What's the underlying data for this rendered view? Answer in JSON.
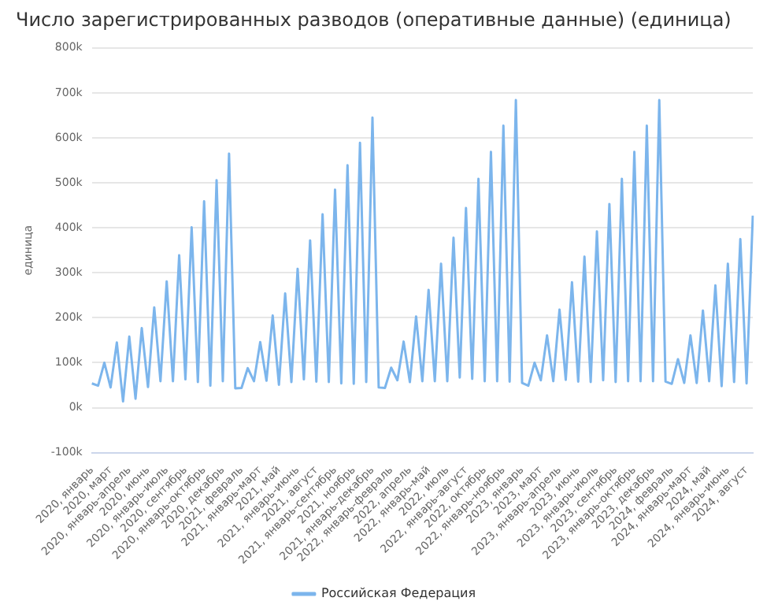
{
  "chart_data": {
    "type": "line",
    "title": "Число зарегистрированных разводов (оперативные данные) (единица)",
    "ylabel": "единица",
    "categories": [
      "2020, январь",
      null,
      null,
      "2020, март",
      null,
      null,
      "2020, январь-апрель",
      null,
      null,
      "2020, июнь",
      null,
      null,
      "2020, январь-июль",
      null,
      null,
      "2020, сентябрь",
      null,
      null,
      "2020, январь-октябрь",
      null,
      null,
      "2020, декабрь",
      null,
      null,
      "2021, февраль",
      null,
      null,
      "2021, январь-март",
      null,
      null,
      "2021, май",
      null,
      null,
      "2021, январь-июнь",
      null,
      null,
      "2021, август",
      null,
      null,
      "2021, январь-сентябрь",
      null,
      null,
      "2021, ноябрь",
      null,
      null,
      "2021, январь-декабрь",
      null,
      null,
      "2022, январь-февраль",
      null,
      null,
      "2022, апрель",
      null,
      null,
      "2022, январь-май",
      null,
      null,
      "2022, июль",
      null,
      null,
      "2022, январь-август",
      null,
      null,
      "2022, октябрь",
      null,
      null,
      "2022, январь-ноябрь",
      null,
      null,
      "2023, январь",
      null,
      null,
      "2023, март",
      null,
      null,
      "2023, январь-апрель",
      null,
      null,
      "2023, июнь",
      null,
      null,
      "2023, январь-июль",
      null,
      null,
      "2023, сентябрь",
      null,
      null,
      "2023, январь-октябрь",
      null,
      null,
      "2023, декабрь",
      null,
      null,
      "2024, февраль",
      null,
      null,
      "2024, январь-март",
      null,
      null,
      "2024, май",
      null,
      null,
      "2024, январь-июнь",
      null,
      null,
      "2024, август",
      null
    ],
    "series": [
      {
        "name": "Российская Федерация",
        "color": "#7cb5ec",
        "values": [
          54000,
          49000,
          100000,
          45000,
          145000,
          14000,
          158000,
          20000,
          177000,
          46000,
          223000,
          59000,
          281000,
          59000,
          339000,
          63000,
          401000,
          57000,
          459000,
          49000,
          506000,
          59000,
          565000,
          43000,
          44000,
          88000,
          59000,
          146000,
          60000,
          205000,
          51000,
          254000,
          57000,
          309000,
          63000,
          372000,
          58000,
          430000,
          57000,
          485000,
          54000,
          539000,
          53000,
          589000,
          57000,
          645000,
          45000,
          44000,
          89000,
          61000,
          147000,
          57000,
          203000,
          59000,
          262000,
          59000,
          320000,
          59000,
          378000,
          67000,
          444000,
          64000,
          509000,
          59000,
          569000,
          59000,
          627000,
          58000,
          684000,
          55000,
          49000,
          100000,
          61000,
          161000,
          59000,
          218000,
          62000,
          279000,
          58000,
          336000,
          57000,
          392000,
          61000,
          453000,
          57000,
          509000,
          59000,
          569000,
          59000,
          627000,
          59000,
          684000,
          58000,
          53000,
          108000,
          55000,
          161000,
          55000,
          216000,
          59000,
          272000,
          48000,
          320000,
          57000,
          375000,
          54000,
          427000
        ]
      }
    ],
    "ylim": [
      -100000,
      800000
    ],
    "yticks": [
      {
        "value": -100000,
        "label": "-100k"
      },
      {
        "value": 0,
        "label": "0k"
      },
      {
        "value": 100000,
        "label": "100k"
      },
      {
        "value": 200000,
        "label": "200k"
      },
      {
        "value": 300000,
        "label": "300k"
      },
      {
        "value": 400000,
        "label": "400k"
      },
      {
        "value": 500000,
        "label": "500k"
      },
      {
        "value": 600000,
        "label": "600k"
      },
      {
        "value": 700000,
        "label": "700k"
      },
      {
        "value": 800000,
        "label": "800k"
      }
    ],
    "grid": "y",
    "legend": "bottom",
    "marker": "none",
    "line_style": "solid"
  }
}
